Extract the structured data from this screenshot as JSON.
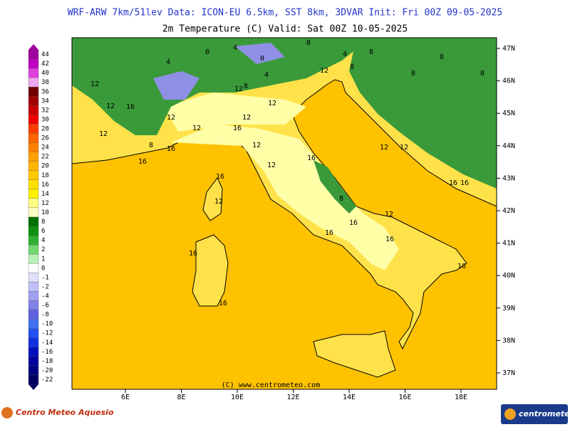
{
  "header": {
    "title": "WRF-ARW 7km/51lev  Data: ICON-EU 6.5km, SST 8km, 3DVAR  Init: Fri 00Z 09-05-2025",
    "subtitle": "2m Temperature (C)  Valid: Sat 00Z 10-05-2025"
  },
  "colorbar": {
    "levels": [
      44,
      42,
      40,
      38,
      36,
      34,
      32,
      30,
      28,
      26,
      24,
      22,
      20,
      18,
      16,
      14,
      12,
      10,
      8,
      6,
      4,
      2,
      1,
      0,
      -1,
      -2,
      -4,
      -6,
      -8,
      -10,
      -12,
      -14,
      -16,
      -18,
      -20,
      -22
    ],
    "colors": [
      "#a000a0",
      "#c000c0",
      "#e040e0",
      "#f0a8f0",
      "#700000",
      "#a00000",
      "#c80000",
      "#f00000",
      "#ff3c00",
      "#ff6400",
      "#ff8000",
      "#ffa000",
      "#ffb400",
      "#ffc800",
      "#ffe000",
      "#fff000",
      "#ffff80",
      "#ffffc8",
      "#007000",
      "#109010",
      "#30b030",
      "#70d870",
      "#b8f0b8",
      "#ffffff",
      "#e0e0ff",
      "#c0c0f8",
      "#a0a0f0",
      "#8080e8",
      "#6060e0",
      "#4070f0",
      "#2050f0",
      "#1030e0",
      "#0010c0",
      "#0000a0",
      "#000080",
      "#000060"
    ]
  },
  "map": {
    "lat_labels": [
      "47N",
      "46N",
      "45N",
      "44N",
      "43N",
      "42N",
      "41N",
      "40N",
      "39N",
      "38N",
      "37N"
    ],
    "lon_labels": [
      "6E",
      "8E",
      "10E",
      "12E",
      "14E",
      "16E",
      "18E"
    ],
    "contour_labels": [
      "0",
      "4",
      "0",
      "4",
      "8",
      "8",
      "4",
      "4",
      "12",
      "8",
      "8",
      "8",
      "8",
      "12",
      "12",
      "12",
      "8",
      "12",
      "12",
      "12",
      "16",
      "12",
      "8",
      "16",
      "12",
      "16",
      "12",
      "12",
      "16",
      "12",
      "8",
      "12",
      "16",
      "12",
      "16",
      "16",
      "16",
      "16",
      "16",
      "12",
      "16",
      "16",
      "16",
      "16"
    ],
    "copyright": "(C) www.centrometeo.com"
  },
  "footer": {
    "left_logo": "Centro Meteo Aquesio",
    "right_logo": "centrometeo"
  }
}
